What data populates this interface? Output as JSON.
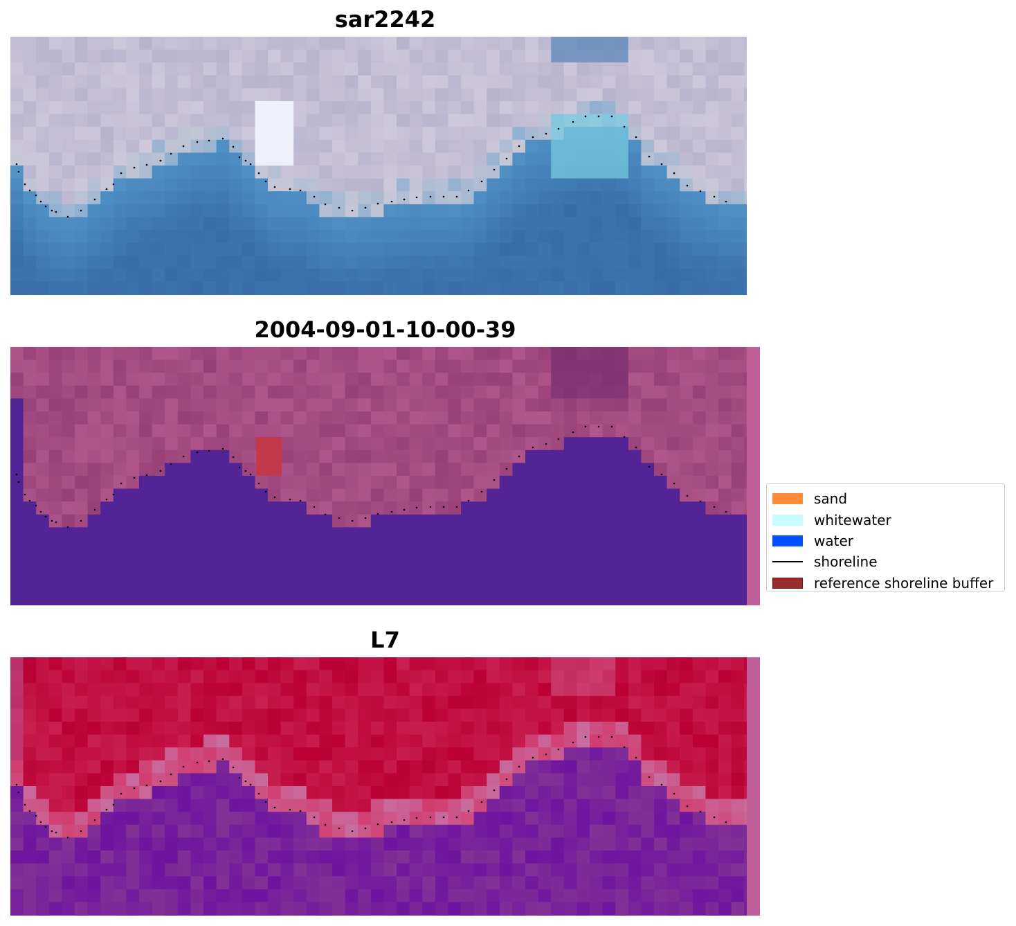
{
  "panels": [
    {
      "title": "sar2242",
      "image": "rgb-satellite-image"
    },
    {
      "title": "2004-09-01-10-00-39",
      "image": "classified-image"
    },
    {
      "title": "L7",
      "image": "mndwi-image"
    }
  ],
  "legend": {
    "items": [
      {
        "label": "sand",
        "color": "#ff8c3a",
        "kind": "patch"
      },
      {
        "label": "whitewater",
        "color": "#c8fcff",
        "kind": "patch"
      },
      {
        "label": "water",
        "color": "#0050ff",
        "kind": "patch"
      },
      {
        "label": "shoreline",
        "color": "#000000",
        "kind": "line"
      },
      {
        "label": "reference shoreline buffer",
        "color": "#9b2c2c",
        "kind": "patch"
      }
    ]
  },
  "shoreline": {
    "color": "#000000",
    "points": [
      [
        24,
        237
      ],
      [
        27,
        248
      ],
      [
        36,
        266
      ],
      [
        43,
        275
      ],
      [
        52,
        282
      ],
      [
        59,
        291
      ],
      [
        66,
        298
      ],
      [
        75,
        304
      ],
      [
        81,
        306
      ],
      [
        98,
        313
      ],
      [
        117,
        304
      ],
      [
        137,
        288
      ],
      [
        154,
        273
      ],
      [
        164,
        266
      ],
      [
        175,
        250
      ],
      [
        194,
        242
      ],
      [
        212,
        238
      ],
      [
        232,
        232
      ],
      [
        247,
        222
      ],
      [
        265,
        211
      ],
      [
        285,
        205
      ],
      [
        302,
        203
      ],
      [
        322,
        200
      ],
      [
        337,
        212
      ],
      [
        346,
        227
      ],
      [
        355,
        232
      ],
      [
        362,
        237
      ],
      [
        374,
        250
      ],
      [
        384,
        262
      ],
      [
        397,
        270
      ],
      [
        419,
        273
      ],
      [
        434,
        275
      ],
      [
        454,
        284
      ],
      [
        470,
        295
      ],
      [
        490,
        300
      ],
      [
        509,
        304
      ],
      [
        528,
        300
      ],
      [
        546,
        294
      ],
      [
        566,
        291
      ],
      [
        584,
        288
      ],
      [
        602,
        285
      ],
      [
        622,
        284
      ],
      [
        641,
        284
      ],
      [
        660,
        284
      ],
      [
        677,
        275
      ],
      [
        696,
        262
      ],
      [
        714,
        245
      ],
      [
        732,
        229
      ],
      [
        750,
        211
      ],
      [
        770,
        198
      ],
      [
        789,
        193
      ],
      [
        807,
        186
      ],
      [
        828,
        176
      ],
      [
        846,
        168
      ],
      [
        865,
        168
      ],
      [
        884,
        168
      ],
      [
        902,
        183
      ],
      [
        919,
        198
      ],
      [
        938,
        226
      ],
      [
        956,
        237
      ],
      [
        974,
        250
      ],
      [
        993,
        268
      ],
      [
        1012,
        276
      ],
      [
        1032,
        284
      ],
      [
        1049,
        291
      ]
    ]
  }
}
